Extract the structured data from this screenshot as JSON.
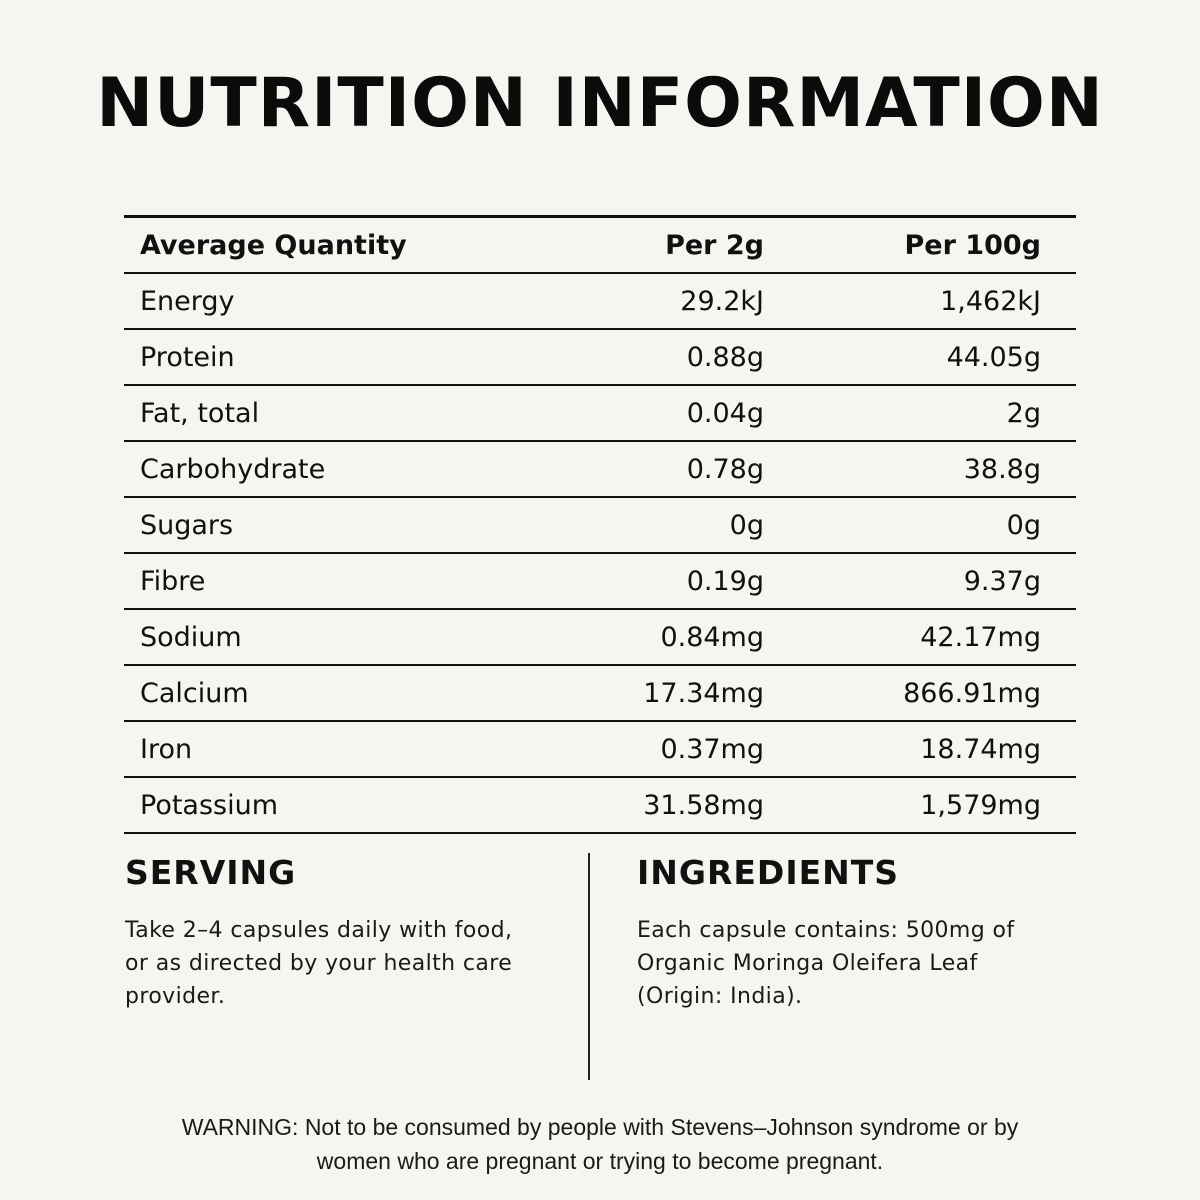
{
  "title": "NUTRITION INFORMATION",
  "table": {
    "headers": [
      "Average Quantity",
      "Per 2g",
      "Per 100g"
    ],
    "rows": [
      {
        "name": "Energy",
        "per_2g": "29.2kJ",
        "per_100g": "1,462kJ"
      },
      {
        "name": "Protein",
        "per_2g": "0.88g",
        "per_100g": "44.05g"
      },
      {
        "name": "Fat, total",
        "per_2g": "0.04g",
        "per_100g": "2g"
      },
      {
        "name": "Carbohydrate",
        "per_2g": "0.78g",
        "per_100g": "38.8g"
      },
      {
        "name": "Sugars",
        "per_2g": "0g",
        "per_100g": "0g"
      },
      {
        "name": "Fibre",
        "per_2g": "0.19g",
        "per_100g": "9.37g"
      },
      {
        "name": "Sodium",
        "per_2g": "0.84mg",
        "per_100g": "42.17mg"
      },
      {
        "name": "Calcium",
        "per_2g": "17.34mg",
        "per_100g": "866.91mg"
      },
      {
        "name": "Iron",
        "per_2g": "0.37mg",
        "per_100g": "18.74mg"
      },
      {
        "name": "Potassium",
        "per_2g": "31.58mg",
        "per_100g": "1,579mg"
      }
    ]
  },
  "serving": {
    "heading": "SERVING",
    "lines": [
      "Take 2–4 capsules daily with food,",
      "or as directed by your health care",
      "provider."
    ]
  },
  "ingredients": {
    "heading": "INGREDIENTS",
    "lines": [
      "Each capsule contains: 500mg of",
      "Organic Moringa Oleifera Leaf",
      "(Origin: India)."
    ]
  },
  "warning": {
    "lines": [
      "WARNING: Not to be consumed by people with Stevens–Johnson syndrome or by",
      "women who are pregnant or trying to become pregnant."
    ]
  }
}
